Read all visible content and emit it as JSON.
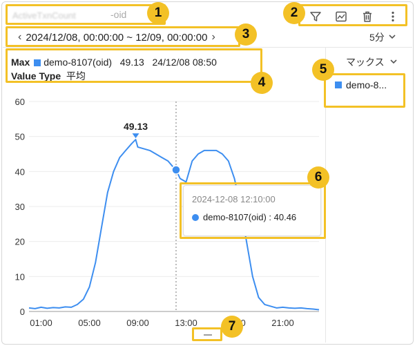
{
  "header": {
    "metric_title": "ActiveTxnCount",
    "metric_sub_prefix": "",
    "metric_sub_suffix": "-oid"
  },
  "toolbar": {
    "icons": [
      "filter-icon",
      "chart-image-icon",
      "trash-icon",
      "more-vertical-icon"
    ]
  },
  "time_range": {
    "prev": "‹",
    "label": "2024/12/08, 00:00:00 ~ 12/09, 00:00:00",
    "next": "›"
  },
  "interval": {
    "label": "5分"
  },
  "info": {
    "max_label": "Max",
    "max_series": "demo-8107(oid)",
    "max_value": "49.13",
    "max_time": "24/12/08 08:50",
    "value_type_label": "Value Type",
    "value_type": "平均"
  },
  "aggregation": {
    "label": "マックス"
  },
  "legend": {
    "items": [
      {
        "name": "demo-8...",
        "color": "#3d8ef0"
      }
    ]
  },
  "tooltip": {
    "time": "2024-12-08 12:10:00",
    "series": "demo-8107(oid)",
    "value": ": 40.46"
  },
  "annotations": [
    "1",
    "2",
    "3",
    "4",
    "5",
    "6",
    "7"
  ],
  "colors": {
    "series": "#3d8ef0",
    "annotation": "#f3c126"
  },
  "chart_data": {
    "type": "line",
    "ylim": [
      0,
      60
    ],
    "yticks": [
      "0",
      "10",
      "20",
      "30",
      "40",
      "50",
      "60"
    ],
    "xlim": [
      0,
      24
    ],
    "xticks": [
      {
        "hour": 1,
        "label": "01:00"
      },
      {
        "hour": 5,
        "label": "05:00"
      },
      {
        "hour": 9,
        "label": "09:00"
      },
      {
        "hour": 13,
        "label": "13:00"
      },
      {
        "hour": 17,
        "label": "17:00"
      },
      {
        "hour": 21,
        "label": "21:00"
      }
    ],
    "crosshair_hour": 12.17,
    "max_point": {
      "hour": 8.83,
      "value": 49.13,
      "label": "49.13"
    },
    "hover_point": {
      "hour": 12.17,
      "value": 40.46
    },
    "series": [
      {
        "x": [
          0,
          0.5,
          1,
          1.5,
          2,
          2.5,
          3,
          3.5,
          4,
          4.5,
          5,
          5.5,
          6,
          6.5,
          7,
          7.5,
          8,
          8.5,
          8.83,
          9,
          9.5,
          10,
          10.5,
          11,
          11.5,
          12,
          12.17,
          12.5,
          13,
          13.5,
          14,
          14.5,
          15,
          15.5,
          16,
          16.5,
          17,
          17.5,
          18,
          18.5,
          19,
          19.5,
          20,
          20.5,
          21,
          21.5,
          22,
          22.5,
          23,
          23.5,
          24
        ],
        "y": [
          1,
          0.8,
          1.2,
          0.9,
          1.1,
          1,
          1.3,
          1.2,
          2,
          3.5,
          7,
          14,
          24,
          34,
          40,
          44,
          46,
          48,
          49.13,
          47,
          46.5,
          46,
          45,
          44,
          43,
          41,
          40.46,
          38,
          37,
          43,
          45,
          46,
          46,
          46,
          45,
          43,
          38,
          30,
          20,
          10,
          4,
          2,
          1.5,
          1,
          1.2,
          1,
          0.9,
          1,
          0.8,
          0.7,
          0.5
        ]
      }
    ]
  }
}
